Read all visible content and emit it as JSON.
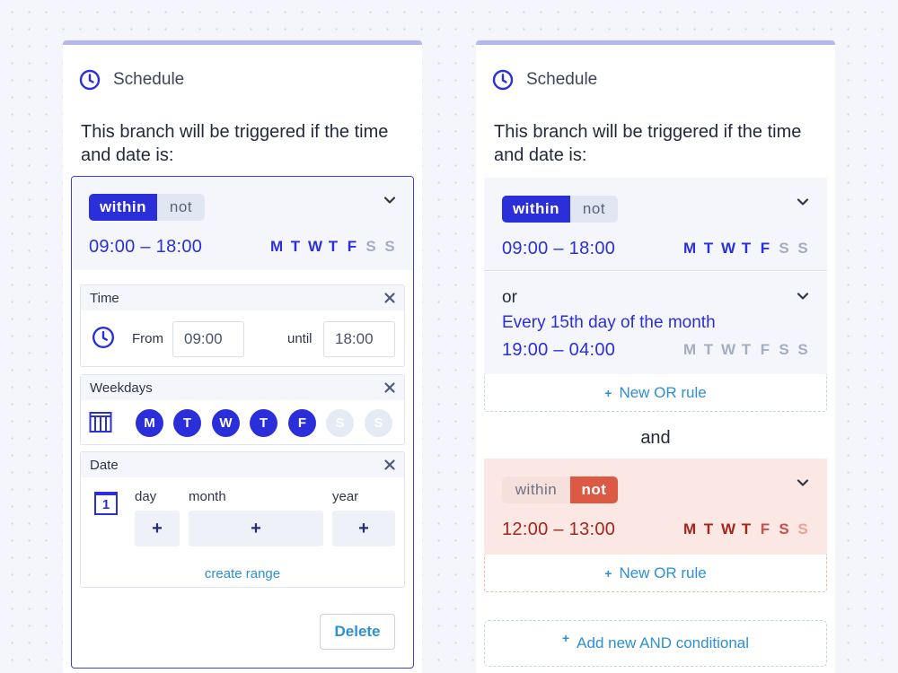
{
  "left_panel": {
    "title": "Schedule",
    "intro": "This branch will be triggered if the time and date is:",
    "condition": {
      "toggle": {
        "within": "within",
        "not": "not",
        "active": "within"
      },
      "time_range": "09:00 – 18:00",
      "days": [
        {
          "letter": "M",
          "active": true
        },
        {
          "letter": "T",
          "active": true
        },
        {
          "letter": "W",
          "active": true
        },
        {
          "letter": "T",
          "active": true
        },
        {
          "letter": "F",
          "active": true
        },
        {
          "letter": "S",
          "active": false
        },
        {
          "letter": "S",
          "active": false
        }
      ]
    },
    "time_card": {
      "title": "Time",
      "from_label": "From",
      "from_value": "09:00",
      "until_label": "until",
      "until_value": "18:00"
    },
    "weekdays_card": {
      "title": "Weekdays",
      "days": [
        {
          "letter": "M",
          "active": true
        },
        {
          "letter": "T",
          "active": true
        },
        {
          "letter": "W",
          "active": true
        },
        {
          "letter": "T",
          "active": true
        },
        {
          "letter": "F",
          "active": true
        },
        {
          "letter": "S",
          "active": false
        },
        {
          "letter": "S",
          "active": false
        }
      ]
    },
    "date_card": {
      "title": "Date",
      "day_label": "day",
      "month_label": "month",
      "year_label": "year",
      "add_symbol": "+",
      "calendar_number": "1",
      "create_range": "create range"
    },
    "delete_label": "Delete"
  },
  "right_panel": {
    "title": "Schedule",
    "intro": "This branch will be triggered if the time and date is:",
    "condition1": {
      "toggle": {
        "within": "within",
        "not": "not",
        "active": "within"
      },
      "time_range": "09:00 – 18:00",
      "days": [
        "M",
        "T",
        "W",
        "T",
        "F",
        "S",
        "S"
      ]
    },
    "or_rule": {
      "or_label": "or",
      "description": "Every 15th day of the month",
      "time_range": "19:00 – 04:00",
      "days": [
        "M",
        "T",
        "W",
        "T",
        "F",
        "S",
        "S"
      ]
    },
    "new_or_rule_label": "New OR rule",
    "and_label": "and",
    "condition2": {
      "toggle": {
        "within": "within",
        "not": "not",
        "active": "not"
      },
      "time_range": "12:00 – 13:00",
      "days": [
        "M",
        "T",
        "W",
        "T",
        "F",
        "S",
        "S"
      ]
    },
    "new_or_rule_label_2": "New OR rule",
    "add_and_label": "Add new AND conditional"
  },
  "colors": {
    "primary": "#2b2fd9",
    "link": "#2d8fd4",
    "danger": "#dc5a44",
    "danger_bg": "#fbe7e3",
    "header_bar": "#b4b8ee"
  },
  "plus_symbol": "+"
}
